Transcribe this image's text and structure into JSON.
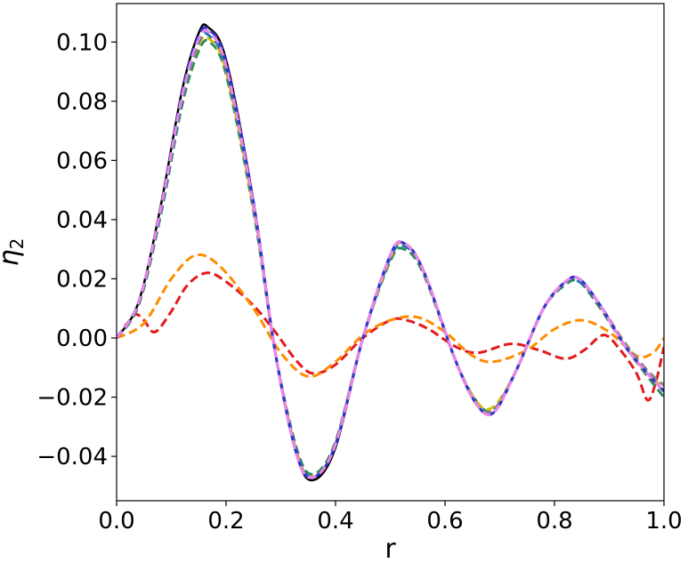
{
  "chart_data": {
    "type": "line",
    "title": "",
    "xlabel": "r",
    "ylabel_main": "η",
    "ylabel_sub": "2",
    "xlim": [
      0.0,
      1.0
    ],
    "ylim": [
      -0.055,
      0.113
    ],
    "grid": false,
    "x_ticks": [
      0.0,
      0.2,
      0.4,
      0.6,
      0.8,
      1.0
    ],
    "x_tick_labels": [
      "0.0",
      "0.2",
      "0.4",
      "0.6",
      "0.8",
      "1.0"
    ],
    "y_ticks": [
      -0.04,
      -0.02,
      0.0,
      0.02,
      0.04,
      0.06,
      0.08,
      0.1
    ],
    "y_tick_labels": [
      "−0.04",
      "−0.02",
      "0.00",
      "0.02",
      "0.04",
      "0.06",
      "0.08",
      "0.10"
    ],
    "series": [
      {
        "color": "#e31a1c",
        "dashed": true,
        "width": 3,
        "points": [
          [
            0,
            0
          ],
          [
            0.02,
            0.005
          ],
          [
            0.035,
            0.008
          ],
          [
            0.05,
            0.006
          ],
          [
            0.07,
            0.002
          ],
          [
            0.1,
            0.009
          ],
          [
            0.13,
            0.018
          ],
          [
            0.165,
            0.022
          ],
          [
            0.2,
            0.019
          ],
          [
            0.25,
            0.011
          ],
          [
            0.29,
            0.002
          ],
          [
            0.33,
            -0.008
          ],
          [
            0.36,
            -0.012
          ],
          [
            0.4,
            -0.009
          ],
          [
            0.45,
            0.0
          ],
          [
            0.5,
            0.006
          ],
          [
            0.53,
            0.006
          ],
          [
            0.57,
            0.003
          ],
          [
            0.62,
            -0.003
          ],
          [
            0.66,
            -0.005
          ],
          [
            0.72,
            -0.002
          ],
          [
            0.77,
            -0.004
          ],
          [
            0.82,
            -0.007
          ],
          [
            0.855,
            -0.004
          ],
          [
            0.89,
            0.001
          ],
          [
            0.92,
            -0.004
          ],
          [
            0.95,
            -0.012
          ],
          [
            0.97,
            -0.021
          ],
          [
            0.985,
            -0.015
          ],
          [
            1.0,
            -0.003
          ]
        ]
      },
      {
        "color": "#ff8c00",
        "dashed": true,
        "width": 3,
        "points": [
          [
            0,
            0
          ],
          [
            0.05,
            0.005
          ],
          [
            0.1,
            0.02
          ],
          [
            0.145,
            0.028
          ],
          [
            0.19,
            0.024
          ],
          [
            0.25,
            0.01
          ],
          [
            0.3,
            -0.005
          ],
          [
            0.35,
            -0.013
          ],
          [
            0.4,
            -0.008
          ],
          [
            0.45,
            0.001
          ],
          [
            0.5,
            0.006
          ],
          [
            0.55,
            0.007
          ],
          [
            0.6,
            0.002
          ],
          [
            0.65,
            -0.006
          ],
          [
            0.69,
            -0.008
          ],
          [
            0.75,
            -0.004
          ],
          [
            0.8,
            0.003
          ],
          [
            0.85,
            0.006
          ],
          [
            0.9,
            0.002
          ],
          [
            0.95,
            -0.006
          ],
          [
            0.98,
            -0.005
          ],
          [
            1.0,
            0.0
          ]
        ]
      },
      {
        "color": "#2e8b57",
        "dashed": true,
        "width": 3,
        "points": [
          [
            0,
            0
          ],
          [
            0.04,
            0.011
          ],
          [
            0.08,
            0.041
          ],
          [
            0.12,
            0.079
          ],
          [
            0.15,
            0.097
          ],
          [
            0.17,
            0.1
          ],
          [
            0.2,
            0.089
          ],
          [
            0.25,
            0.043
          ],
          [
            0.29,
            -0.005
          ],
          [
            0.33,
            -0.038
          ],
          [
            0.36,
            -0.046
          ],
          [
            0.4,
            -0.035
          ],
          [
            0.45,
            0.0
          ],
          [
            0.5,
            0.026
          ],
          [
            0.525,
            0.03
          ],
          [
            0.56,
            0.022
          ],
          [
            0.62,
            -0.008
          ],
          [
            0.66,
            -0.022
          ],
          [
            0.69,
            -0.024
          ],
          [
            0.73,
            -0.011
          ],
          [
            0.78,
            0.01
          ],
          [
            0.82,
            0.018
          ],
          [
            0.845,
            0.019
          ],
          [
            0.88,
            0.011
          ],
          [
            0.93,
            -0.003
          ],
          [
            0.97,
            -0.013
          ],
          [
            1.0,
            -0.02
          ]
        ]
      },
      {
        "color": "#d4c000",
        "dashed": true,
        "width": 3,
        "points": [
          [
            0,
            0
          ],
          [
            0.04,
            0.012
          ],
          [
            0.08,
            0.042
          ],
          [
            0.12,
            0.081
          ],
          [
            0.15,
            0.099
          ],
          [
            0.17,
            0.101
          ],
          [
            0.2,
            0.09
          ],
          [
            0.25,
            0.044
          ],
          [
            0.29,
            -0.005
          ],
          [
            0.33,
            -0.039
          ],
          [
            0.36,
            -0.047
          ],
          [
            0.4,
            -0.036
          ],
          [
            0.45,
            0.0
          ],
          [
            0.5,
            0.027
          ],
          [
            0.525,
            0.032
          ],
          [
            0.56,
            0.023
          ],
          [
            0.62,
            -0.008
          ],
          [
            0.66,
            -0.022
          ],
          [
            0.69,
            -0.023
          ],
          [
            0.73,
            -0.011
          ],
          [
            0.78,
            0.01
          ],
          [
            0.82,
            0.019
          ],
          [
            0.845,
            0.02
          ],
          [
            0.88,
            0.012
          ],
          [
            0.93,
            -0.003
          ],
          [
            0.97,
            -0.012
          ],
          [
            1.0,
            -0.017
          ]
        ]
      },
      {
        "color": "#1f77b4",
        "dashed": true,
        "width": 3,
        "points": [
          [
            0,
            0
          ],
          [
            0.04,
            0.012
          ],
          [
            0.08,
            0.042
          ],
          [
            0.12,
            0.081
          ],
          [
            0.15,
            0.1
          ],
          [
            0.17,
            0.102
          ],
          [
            0.2,
            0.091
          ],
          [
            0.25,
            0.045
          ],
          [
            0.29,
            -0.005
          ],
          [
            0.33,
            -0.039
          ],
          [
            0.36,
            -0.047
          ],
          [
            0.4,
            -0.036
          ],
          [
            0.45,
            0.0
          ],
          [
            0.5,
            0.027
          ],
          [
            0.525,
            0.031
          ],
          [
            0.56,
            0.023
          ],
          [
            0.62,
            -0.008
          ],
          [
            0.66,
            -0.023
          ],
          [
            0.69,
            -0.024
          ],
          [
            0.73,
            -0.011
          ],
          [
            0.78,
            0.01
          ],
          [
            0.82,
            0.019
          ],
          [
            0.845,
            0.019
          ],
          [
            0.88,
            0.012
          ],
          [
            0.93,
            -0.003
          ],
          [
            0.97,
            -0.012
          ],
          [
            1.0,
            -0.018
          ]
        ]
      },
      {
        "color": "#888888",
        "dashed": true,
        "width": 3,
        "points": [
          [
            0,
            0
          ],
          [
            0.04,
            0.012
          ],
          [
            0.08,
            0.043
          ],
          [
            0.12,
            0.082
          ],
          [
            0.15,
            0.101
          ],
          [
            0.17,
            0.103
          ],
          [
            0.2,
            0.092
          ],
          [
            0.25,
            0.045
          ],
          [
            0.29,
            -0.005
          ],
          [
            0.33,
            -0.04
          ],
          [
            0.36,
            -0.047
          ],
          [
            0.4,
            -0.036
          ],
          [
            0.45,
            0.0
          ],
          [
            0.5,
            0.028
          ],
          [
            0.525,
            0.032
          ],
          [
            0.56,
            0.023
          ],
          [
            0.62,
            -0.008
          ],
          [
            0.66,
            -0.023
          ],
          [
            0.69,
            -0.024
          ],
          [
            0.73,
            -0.011
          ],
          [
            0.78,
            0.01
          ],
          [
            0.82,
            0.019
          ],
          [
            0.845,
            0.02
          ],
          [
            0.88,
            0.012
          ],
          [
            0.93,
            -0.002
          ],
          [
            0.97,
            -0.011
          ],
          [
            1.0,
            -0.016
          ]
        ]
      },
      {
        "color": "#000000",
        "dashed": false,
        "width": 2.5,
        "points": [
          [
            0,
            0
          ],
          [
            0.04,
            0.012
          ],
          [
            0.08,
            0.044
          ],
          [
            0.12,
            0.084
          ],
          [
            0.15,
            0.103
          ],
          [
            0.167,
            0.105
          ],
          [
            0.2,
            0.094
          ],
          [
            0.25,
            0.046
          ],
          [
            0.29,
            -0.005
          ],
          [
            0.33,
            -0.04
          ],
          [
            0.36,
            -0.048
          ],
          [
            0.4,
            -0.037
          ],
          [
            0.45,
            0.0
          ],
          [
            0.5,
            0.028
          ],
          [
            0.525,
            0.032
          ],
          [
            0.56,
            0.023
          ],
          [
            0.62,
            -0.008
          ],
          [
            0.66,
            -0.023
          ],
          [
            0.69,
            -0.025
          ],
          [
            0.73,
            -0.011
          ],
          [
            0.78,
            0.01
          ],
          [
            0.82,
            0.019
          ],
          [
            0.845,
            0.02
          ],
          [
            0.88,
            0.012
          ],
          [
            0.93,
            -0.003
          ],
          [
            0.97,
            -0.012
          ],
          [
            1.0,
            -0.018
          ]
        ]
      },
      {
        "color": "#3333cc",
        "dashed": true,
        "width": 3,
        "points": [
          [
            0,
            0
          ],
          [
            0.04,
            0.012
          ],
          [
            0.08,
            0.043
          ],
          [
            0.12,
            0.083
          ],
          [
            0.15,
            0.102
          ],
          [
            0.17,
            0.104
          ],
          [
            0.2,
            0.093
          ],
          [
            0.25,
            0.046
          ],
          [
            0.29,
            -0.005
          ],
          [
            0.33,
            -0.04
          ],
          [
            0.36,
            -0.047
          ],
          [
            0.4,
            -0.036
          ],
          [
            0.45,
            0.0
          ],
          [
            0.5,
            0.028
          ],
          [
            0.525,
            0.032
          ],
          [
            0.56,
            0.023
          ],
          [
            0.62,
            -0.008
          ],
          [
            0.66,
            -0.023
          ],
          [
            0.69,
            -0.025
          ],
          [
            0.73,
            -0.011
          ],
          [
            0.78,
            0.01
          ],
          [
            0.82,
            0.019
          ],
          [
            0.845,
            0.02
          ],
          [
            0.88,
            0.012
          ],
          [
            0.93,
            -0.003
          ],
          [
            0.97,
            -0.012
          ],
          [
            1.0,
            -0.018
          ]
        ]
      },
      {
        "color": "#ee82ee",
        "dashed": true,
        "width": 3,
        "points": [
          [
            0,
            0
          ],
          [
            0.04,
            0.012
          ],
          [
            0.08,
            0.043
          ],
          [
            0.12,
            0.082
          ],
          [
            0.15,
            0.101
          ],
          [
            0.17,
            0.103
          ],
          [
            0.2,
            0.092
          ],
          [
            0.25,
            0.045
          ],
          [
            0.29,
            -0.005
          ],
          [
            0.33,
            -0.04
          ],
          [
            0.36,
            -0.047
          ],
          [
            0.4,
            -0.036
          ],
          [
            0.45,
            0.0
          ],
          [
            0.5,
            0.028
          ],
          [
            0.525,
            0.032
          ],
          [
            0.56,
            0.023
          ],
          [
            0.62,
            -0.008
          ],
          [
            0.66,
            -0.023
          ],
          [
            0.69,
            -0.025
          ],
          [
            0.73,
            -0.011
          ],
          [
            0.78,
            0.01
          ],
          [
            0.82,
            0.019
          ],
          [
            0.845,
            0.02
          ],
          [
            0.88,
            0.012
          ],
          [
            0.93,
            -0.003
          ],
          [
            0.97,
            -0.012
          ],
          [
            1.0,
            -0.018
          ]
        ]
      }
    ]
  }
}
